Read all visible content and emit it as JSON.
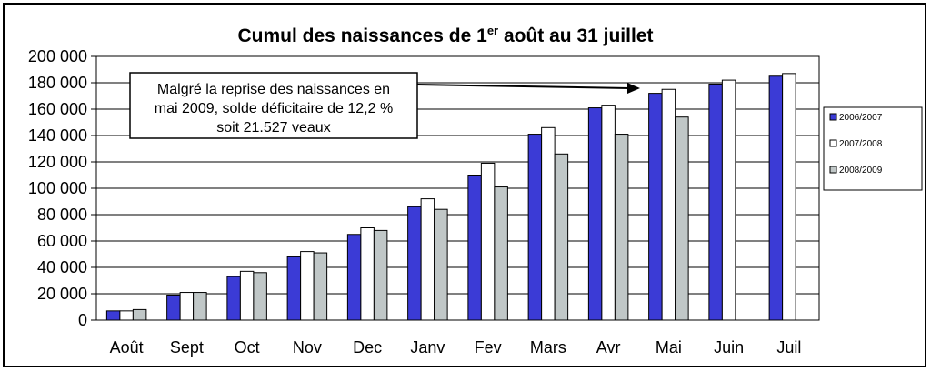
{
  "chart_data": {
    "type": "bar",
    "title": "Cumul des naissances de 1",
    "title_sup": "er",
    "title_rest": " août au 31 juillet",
    "categories": [
      "Août",
      "Sept",
      "Oct",
      "Nov",
      "Dec",
      "Janv",
      "Fev",
      "Mars",
      "Avr",
      "Mai",
      "Juin",
      "Juil"
    ],
    "series": [
      {
        "name": "2006/2007",
        "color": "#3b3bd6",
        "values": [
          7000,
          19000,
          33000,
          48000,
          65000,
          86000,
          110000,
          141000,
          161000,
          172000,
          179000,
          185000
        ]
      },
      {
        "name": "2007/2008",
        "color": "#ffffff",
        "values": [
          7000,
          21000,
          37000,
          52000,
          70000,
          92000,
          119000,
          146000,
          163000,
          175000,
          182000,
          187000
        ]
      },
      {
        "name": "2008/2009",
        "color": "#c0c7c7",
        "values": [
          8000,
          21000,
          36000,
          51000,
          68000,
          84000,
          101000,
          126000,
          141000,
          154000,
          null,
          null
        ]
      }
    ],
    "yticks": [
      "0",
      "20 000",
      "40 000",
      "60 000",
      "80 000",
      "100 000",
      "120 000",
      "140 000",
      "160 000",
      "180 000",
      "200 000"
    ],
    "ylim": [
      0,
      200000
    ],
    "grid": true,
    "legend_position": "right",
    "annotation": {
      "lines": [
        "Malgré la reprise des naissances en",
        "mai 2009, solde déficitaire de 12,2 %",
        "soit 21.527 veaux"
      ],
      "arrow_to_category": "Mai"
    }
  }
}
